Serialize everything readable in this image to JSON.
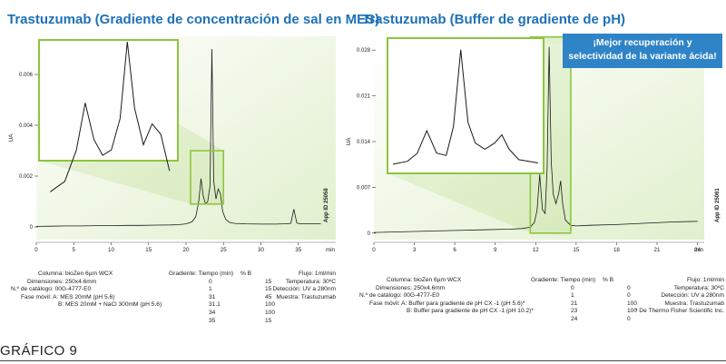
{
  "chart_data": [
    {
      "type": "line",
      "title": "Trastuzumab (Gradiente de concentración de sal en MES)",
      "ylabel": "UA",
      "xlabel": "min",
      "xlim": [
        0,
        40
      ],
      "ylim": [
        -0.0005,
        0.0075
      ],
      "x_ticks": [
        "0",
        "5",
        "10",
        "15",
        "20",
        "25",
        "30",
        "35"
      ],
      "y_ticks": [
        "0",
        "0.002",
        "0.004",
        "0.006"
      ],
      "series": [
        {
          "x": [
            0,
            2,
            4,
            6,
            8,
            10,
            12,
            14,
            16,
            18,
            19,
            20,
            20.8,
            21.3,
            21.7,
            22.0,
            22.3,
            22.6,
            22.9,
            23.2,
            23.45,
            23.7,
            24.0,
            24.3,
            24.6,
            24.9,
            25.3,
            25.8,
            26.5,
            28,
            30,
            32,
            33,
            34,
            34.4,
            34.8,
            35.2,
            36,
            38
          ],
          "y": [
            2e-05,
            3e-05,
            4e-05,
            4e-05,
            5e-05,
            5e-05,
            6e-05,
            6e-05,
            7e-05,
            8e-05,
            9e-05,
            0.00012,
            0.0002,
            0.0004,
            0.001,
            0.0019,
            0.0012,
            0.0009,
            0.001,
            0.0016,
            0.007,
            0.0018,
            0.0011,
            0.0015,
            0.0013,
            0.0006,
            0.0003,
            0.00018,
            0.00014,
            0.00012,
            0.00011,
            0.00011,
            0.00012,
            0.00014,
            0.0007,
            0.00015,
            0.00013,
            0.00013,
            0.00013
          ]
        }
      ]
    },
    {
      "type": "line",
      "title": "Trastuzumab (Buffer de gradiente de pH)",
      "ylabel": "UA",
      "xlabel": "min",
      "xlim": [
        0,
        24.5
      ],
      "ylim": [
        -0.001,
        0.029
      ],
      "x_ticks": [
        "0",
        "3",
        "6",
        "9",
        "12",
        "15",
        "18",
        "21",
        "24"
      ],
      "y_ticks": [
        "0",
        "0.007",
        "0.014",
        "0.021",
        "0.028"
      ],
      "series": [
        {
          "x": [
            0,
            2,
            4,
            6,
            8,
            10,
            11,
            11.6,
            11.9,
            12.1,
            12.3,
            12.5,
            12.7,
            12.85,
            13.0,
            13.15,
            13.3,
            13.5,
            13.7,
            13.85,
            14.0,
            14.2,
            14.6,
            15,
            16,
            18,
            20,
            22,
            24
          ],
          "y": [
            0.0001,
            0.0002,
            0.0003,
            0.0004,
            0.0005,
            0.0006,
            0.0007,
            0.0009,
            0.0016,
            0.0035,
            0.009,
            0.0036,
            0.003,
            0.01,
            0.0285,
            0.011,
            0.006,
            0.0045,
            0.006,
            0.008,
            0.0045,
            0.002,
            0.0012,
            0.0011,
            0.0012,
            0.0013,
            0.0015,
            0.0017,
            0.0018
          ]
        }
      ]
    }
  ],
  "left": {
    "inset_ylim": [
      0.0009,
      0.003
    ],
    "inset_xlim": [
      20.6,
      25.0
    ],
    "app_id": "App ID 25058",
    "info": {
      "columna": "Columna: bioZen 6µm WCX",
      "dimensiones": "Dimensiones: 250x4.6mm",
      "catalogo": "N.º de catálogo: 00G-4777-E0",
      "fase_a": "Fase móvil: A: MES 20mM (pH 5.6)",
      "fase_b": "B: MES 20mM + NaCl 300mM (pH 5.6)",
      "gradiente_label": "Gradiente:",
      "tiempo_label": "Tiempo (min)",
      "b_label": "% B",
      "gradient": [
        [
          "0",
          "15"
        ],
        [
          "1",
          "15"
        ],
        [
          "31",
          "45"
        ],
        [
          "31.1",
          "100"
        ],
        [
          "34",
          "100"
        ],
        [
          "35",
          "15"
        ]
      ],
      "flujo": "Flujo: 1ml/min",
      "temperatura": "Temperatura: 30ºC",
      "deteccion": "Detección: UV a 280nm",
      "muestra": "Muestra: Trastuzumab"
    }
  },
  "right": {
    "inset_ylim": [
      0.0,
      0.03
    ],
    "inset_xlim": [
      11.6,
      14.6
    ],
    "app_id": "App ID 25061",
    "callout_line1": "¡Mejor recuperación y",
    "callout_line2": "selectividad de la variante ácida!",
    "info": {
      "columna": "Columna: bioZen 6µm WCX",
      "dimensiones": "Dimensiones: 250x4.6mm",
      "catalogo": "N.º de catálogo: 00G-4777-E0",
      "fase_a": "Fase móvil: A: Buffer para gradiente de pH CX -1 (pH 5.6)*",
      "fase_b": "B: Buffer para gradiente de pH CX -1 (pH 10.2)*",
      "gradiente_label": "Gradiente:",
      "tiempo_label": "Tiempo (min)",
      "b_label": "% B",
      "gradient": [
        [
          "0",
          "0"
        ],
        [
          "1",
          "0"
        ],
        [
          "21",
          "100"
        ],
        [
          "23",
          "100"
        ],
        [
          "24",
          "0"
        ]
      ],
      "flujo": "Flujo: 1ml/min",
      "temperatura": "Temperatura: 30ºC",
      "deteccion": "Detección: UV a 280nm",
      "muestra": "Muestra: Trastuzumab",
      "nota": "* De Thermo Fisher Scientific Inc."
    }
  },
  "figure_label": "GRÁFICO 9",
  "colors": {
    "title": "#1d71b8",
    "green": "#8cc63f",
    "green_fill": "#c5e29b",
    "callout_bg": "#2f84c7",
    "trace": "#1a1a1a"
  }
}
